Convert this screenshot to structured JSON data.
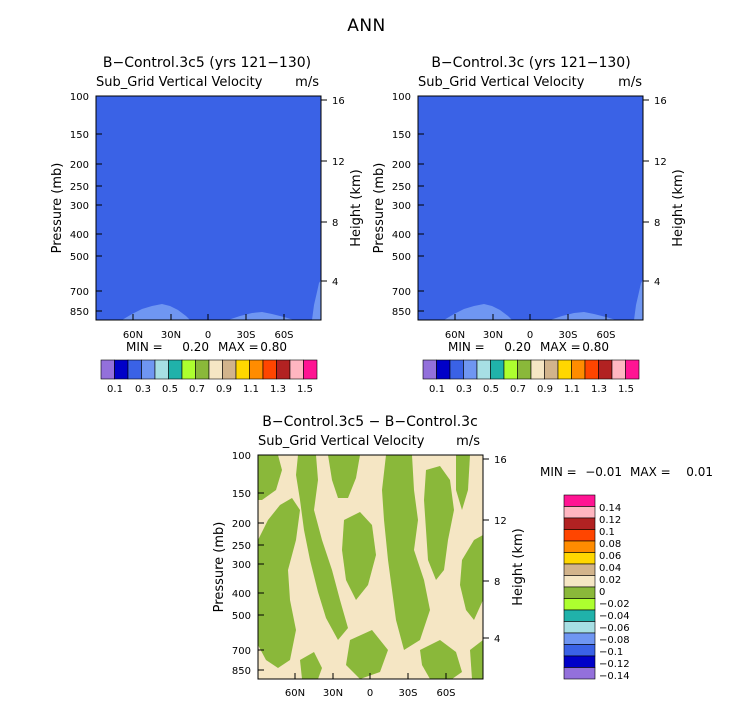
{
  "page": {
    "title": "ANN"
  },
  "palette": {
    "panel_fill": "#3a62e6",
    "light_blue": "#6f96f2",
    "tan": "#f5e6c4",
    "olive_green": "#8ab83a",
    "scale_colors": [
      "#9370db",
      "#0000c8",
      "#3a62e6",
      "#6f96f2",
      "#a7dfe4",
      "#20b2aa",
      "#adff2f",
      "#8ab83a",
      "#f5e6c4",
      "#d2b48c",
      "#ffd700",
      "#ff8c00",
      "#ff4500",
      "#b22222",
      "#ffb6c1",
      "#ff1493"
    ]
  },
  "chart_data": [
    {
      "type": "heatmap",
      "id": "left",
      "title": "B−Control.3c5 (yrs 121−130)",
      "subtitle": "Sub_Grid Vertical Velocity",
      "units": "m/s",
      "ylabel": "Pressure (mb)",
      "y2label": "Height (km)",
      "pressure_ticks": [
        "100",
        "150",
        "200",
        "250",
        "300",
        "400",
        "500",
        "700",
        "850"
      ],
      "height_ticks": [
        "16",
        "12",
        "8",
        "4"
      ],
      "lat_ticks": [
        "60N",
        "30N",
        "0",
        "30S",
        "60S"
      ],
      "min_label": "MIN =",
      "min_value": "0.20",
      "max_label": "MAX =",
      "max_value": "0.80",
      "colorbar_labels": [
        "0.1",
        "0.3",
        "0.5",
        "0.7",
        "0.9",
        "1.1",
        "1.3",
        "1.5"
      ]
    },
    {
      "type": "heatmap",
      "id": "right",
      "title": "B−Control.3c (yrs 121−130)",
      "subtitle": "Sub_Grid Vertical Velocity",
      "units": "m/s",
      "ylabel": "Pressure (mb)",
      "y2label": "Height (km)",
      "pressure_ticks": [
        "100",
        "150",
        "200",
        "250",
        "300",
        "400",
        "500",
        "700",
        "850"
      ],
      "height_ticks": [
        "16",
        "12",
        "8",
        "4"
      ],
      "lat_ticks": [
        "60N",
        "30N",
        "0",
        "30S",
        "60S"
      ],
      "min_label": "MIN =",
      "min_value": "0.20",
      "max_label": "MAX =",
      "max_value": "0.80",
      "colorbar_labels": [
        "0.1",
        "0.3",
        "0.5",
        "0.7",
        "0.9",
        "1.1",
        "1.3",
        "1.5"
      ]
    },
    {
      "type": "heatmap",
      "id": "diff",
      "title": "B−Control.3c5 − B−Control.3c",
      "subtitle": "Sub_Grid Vertical Velocity",
      "units": "m/s",
      "ylabel": "Pressure (mb)",
      "y2label": "Height (km)",
      "pressure_ticks": [
        "100",
        "150",
        "200",
        "250",
        "300",
        "400",
        "500",
        "700",
        "850"
      ],
      "height_ticks": [
        "16",
        "12",
        "8",
        "4"
      ],
      "lat_ticks": [
        "60N",
        "30N",
        "0",
        "30S",
        "60S"
      ],
      "min_label": "MIN =",
      "min_value": "−0.01",
      "max_label": "MAX =",
      "max_value": "0.01",
      "colorbar_labels": [
        "0.14",
        "0.12",
        "0.1",
        "0.08",
        "0.06",
        "0.04",
        "0.02",
        "0",
        "−0.02",
        "−0.04",
        "−0.06",
        "−0.08",
        "−0.1",
        "−0.12",
        "−0.14"
      ]
    }
  ]
}
